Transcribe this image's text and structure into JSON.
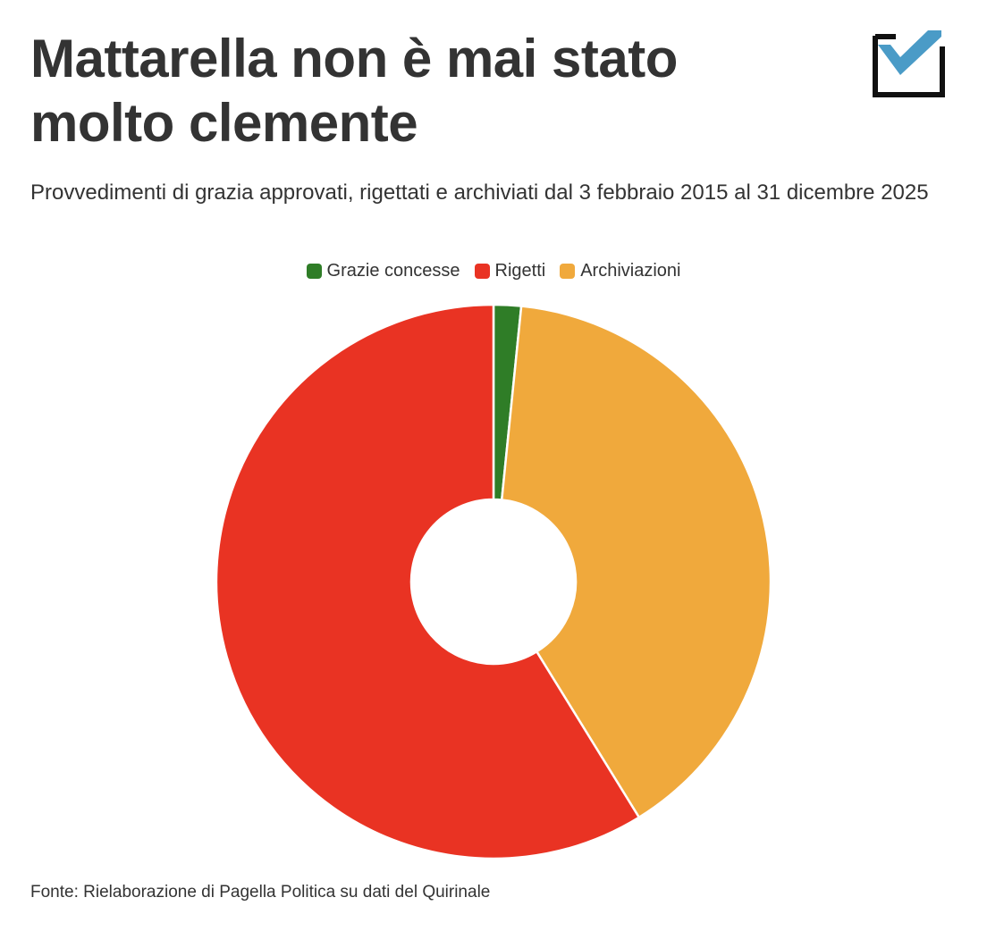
{
  "header": {
    "title_line1": "Mattarella non è mai stato",
    "title_line2": "molto clemente",
    "subtitle": "Provvedimenti di grazia approvati, rigettati e archiviati dal 3 febbraio 2015 al 31 dicembre 2025"
  },
  "logo": {
    "icon": "checkmark-box-icon",
    "box_color": "#111111",
    "check_color": "#4a9bc7"
  },
  "source": "Fonte: Rielaborazione di Pagella Politica su dati del Quirinale",
  "chart_data": {
    "type": "pie",
    "style": "donut",
    "legend_position": "top-center",
    "series": [
      {
        "name": "Grazie concesse",
        "value": 1.6,
        "color": "#2f7d27"
      },
      {
        "name": "Archiviazioni",
        "value": 39.6,
        "color": "#f0a93c"
      },
      {
        "name": "Rigetti",
        "value": 58.8,
        "color": "#e93323"
      }
    ],
    "legend_order": [
      "Grazie concesse",
      "Rigetti",
      "Archiviazioni"
    ],
    "unit": "%"
  }
}
